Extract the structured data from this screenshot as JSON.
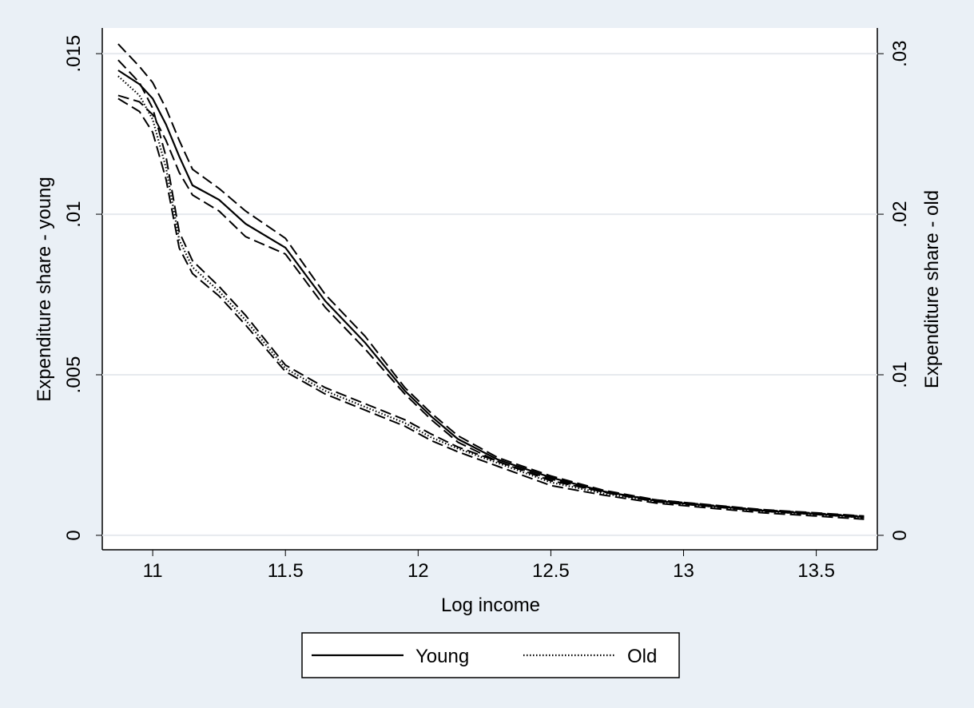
{
  "chart_data": {
    "type": "line",
    "xlabel": "Log income",
    "ylabel": "Expenditure share - young",
    "y2label": "Expenditure share - old",
    "x": [
      10.87,
      10.95,
      11.0,
      11.05,
      11.1,
      11.15,
      11.25,
      11.35,
      11.5,
      11.65,
      11.8,
      11.95,
      12.05,
      12.15,
      12.3,
      12.5,
      12.7,
      12.9,
      13.1,
      13.3,
      13.5,
      13.68
    ],
    "xlim": [
      10.81,
      13.73
    ],
    "xticks": [
      11,
      11.5,
      12,
      12.5,
      13,
      13.5
    ],
    "ylim": [
      -0.00045,
      0.0158
    ],
    "yticks": [
      0,
      {
        "value": 0.005,
        "label": ".005"
      },
      {
        "value": 0.01,
        "label": ".01"
      },
      {
        "value": 0.015,
        "label": ".015"
      }
    ],
    "y2lim": [
      -0.0009,
      0.0316
    ],
    "y2ticks": [
      0,
      {
        "value": 0.01,
        "label": ".01"
      },
      {
        "value": 0.02,
        "label": ".02"
      },
      {
        "value": 0.03,
        "label": ".03"
      }
    ],
    "grid": true,
    "series": [
      {
        "name": "Young",
        "color": "#000000",
        "line_style": "solid",
        "band_style": "dashed",
        "values": [
          0.01448,
          0.01405,
          0.0136,
          0.0128,
          0.0118,
          0.0109,
          0.01045,
          0.0097,
          0.00896,
          0.0073,
          0.006,
          0.0045,
          0.0037,
          0.003,
          0.00236,
          0.0018,
          0.00137,
          0.00107,
          0.00092,
          0.00077,
          0.00067,
          0.00057
        ],
        "upper": [
          0.0153,
          0.0146,
          0.0141,
          0.0133,
          0.0123,
          0.0114,
          0.0108,
          0.0101,
          0.00925,
          0.0075,
          0.0062,
          0.0046,
          0.0038,
          0.0031,
          0.00242,
          0.00185,
          0.0014,
          0.0011,
          0.00094,
          0.00079,
          0.00069,
          0.00059
        ],
        "lower": [
          0.0137,
          0.0135,
          0.0131,
          0.0123,
          0.0113,
          0.0106,
          0.0101,
          0.0093,
          0.00876,
          0.0071,
          0.0058,
          0.0044,
          0.0036,
          0.0029,
          0.0023,
          0.00175,
          0.00134,
          0.00104,
          0.0009,
          0.00075,
          0.00065,
          0.00055
        ]
      },
      {
        "name": "Old",
        "color": "#000000",
        "line_style": "dotted",
        "band_style": "dashed",
        "axis": "y2",
        "values": [
          0.0286,
          0.0274,
          0.0259,
          0.0229,
          0.0184,
          0.0167,
          0.0152,
          0.0134,
          0.0104,
          0.009,
          0.008,
          0.007,
          0.0061,
          0.0054,
          0.0045,
          0.0033,
          0.0026,
          0.0021,
          0.0018,
          0.0015,
          0.0013,
          0.0011
        ],
        "upper": [
          0.0296,
          0.0282,
          0.0266,
          0.0236,
          0.0189,
          0.0171,
          0.0155,
          0.0137,
          0.0106,
          0.0092,
          0.0082,
          0.0072,
          0.0063,
          0.0055,
          0.0046,
          0.0034,
          0.0027,
          0.0022,
          0.0019,
          0.0016,
          0.0014,
          0.0012
        ],
        "lower": [
          0.0272,
          0.0264,
          0.0251,
          0.0222,
          0.0179,
          0.0163,
          0.0149,
          0.0131,
          0.0102,
          0.0088,
          0.0078,
          0.0068,
          0.0059,
          0.0052,
          0.0043,
          0.0031,
          0.0025,
          0.002,
          0.0017,
          0.0014,
          0.0012,
          0.001
        ]
      }
    ]
  }
}
